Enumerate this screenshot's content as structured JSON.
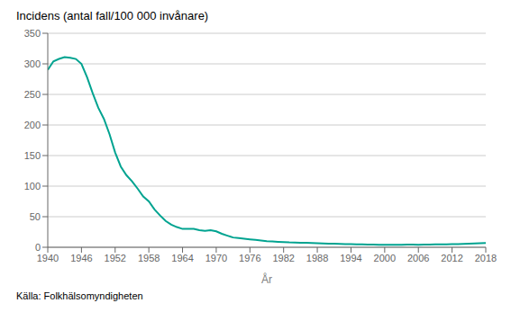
{
  "chart_data": {
    "type": "line",
    "title": "Incidens (antal fall/100 000 invånare)",
    "xlabel": "År",
    "annotations": [
      "Källa: Folkhälsomyndigheten"
    ],
    "color": "#00a390",
    "grid": true,
    "xlim": [
      1940,
      2018
    ],
    "xticks": [
      1940,
      1946,
      1952,
      1958,
      1964,
      1970,
      1976,
      1982,
      1988,
      1994,
      2000,
      2006,
      2012,
      2018
    ],
    "ylim": [
      0,
      350
    ],
    "yticks": [
      0,
      50,
      100,
      150,
      200,
      250,
      300,
      350
    ],
    "x": [
      1940,
      1941,
      1942,
      1943,
      1944,
      1945,
      1946,
      1947,
      1948,
      1949,
      1950,
      1951,
      1952,
      1953,
      1954,
      1955,
      1956,
      1957,
      1958,
      1959,
      1960,
      1961,
      1962,
      1963,
      1964,
      1965,
      1966,
      1967,
      1968,
      1969,
      1970,
      1971,
      1972,
      1973,
      1974,
      1975,
      1976,
      1977,
      1978,
      1979,
      1980,
      1981,
      1982,
      1983,
      1984,
      1985,
      1986,
      1987,
      1988,
      1989,
      1990,
      1991,
      1992,
      1993,
      1994,
      1995,
      1996,
      1997,
      1998,
      1999,
      2000,
      2001,
      2002,
      2003,
      2004,
      2005,
      2006,
      2007,
      2008,
      2009,
      2010,
      2011,
      2012,
      2013,
      2014,
      2015,
      2016,
      2017,
      2018
    ],
    "values": [
      290,
      304,
      308,
      311,
      310,
      308,
      300,
      278,
      252,
      228,
      210,
      185,
      155,
      132,
      118,
      108,
      96,
      83,
      75,
      62,
      52,
      43,
      37,
      33,
      30,
      30,
      30,
      28,
      27,
      28,
      26,
      22,
      19,
      16,
      15,
      14,
      13,
      12,
      11,
      10,
      9.5,
      9,
      8.5,
      8,
      7.8,
      7.5,
      7.2,
      7.0,
      6.5,
      6.2,
      6.0,
      5.8,
      5.5,
      5.2,
      5.0,
      4.8,
      4.6,
      4.5,
      4.3,
      4.2,
      4.0,
      3.9,
      4.0,
      4.2,
      4.3,
      4.5,
      4.2,
      4.3,
      4.5,
      4.8,
      4.7,
      4.8,
      5.0,
      5.2,
      5.5,
      6.0,
      6.2,
      6.5,
      7.0
    ]
  }
}
